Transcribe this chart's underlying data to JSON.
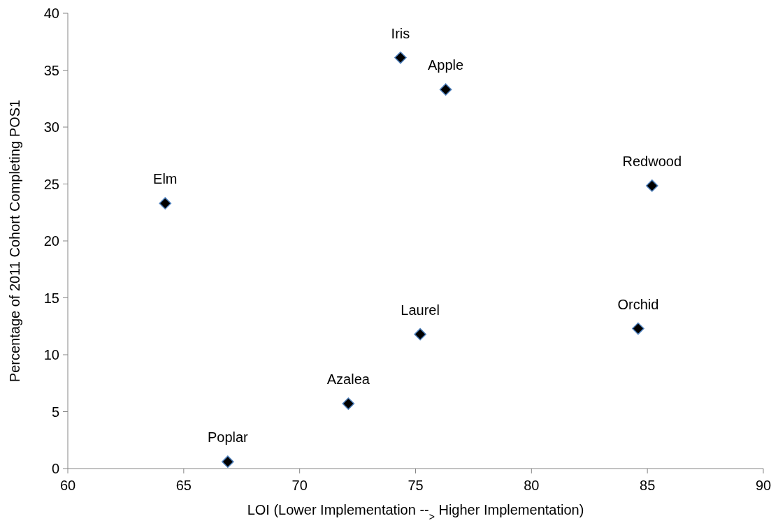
{
  "chart_data": {
    "type": "scatter",
    "xlabel": "LOI (Lower Implementation --$_{>}$ Higher Implementation)",
    "ylabel": "Percentage of 2011 Cohort Completing POS1",
    "x": [
      64.2,
      74.35,
      76.3,
      85.2,
      66.9,
      72.1,
      75.2,
      84.6
    ],
    "series": [
      {
        "color": "#000000",
        "values": [
          23.3,
          36.1,
          33.3,
          24.85,
          0.6,
          5.7,
          11.8,
          12.3
        ]
      }
    ],
    "annotations": [
      {
        "text": "Elm",
        "x": 64.2,
        "y": 23.3
      },
      {
        "text": "Iris",
        "x": 74.35,
        "y": 36.1
      },
      {
        "text": "Apple",
        "x": 76.3,
        "y": 33.3
      },
      {
        "text": "Redwood",
        "x": 85.2,
        "y": 24.85
      },
      {
        "text": "Poplar",
        "x": 66.9,
        "y": 0.6
      },
      {
        "text": "Azalea",
        "x": 72.1,
        "y": 5.7
      },
      {
        "text": "Laurel",
        "x": 75.2,
        "y": 11.8
      },
      {
        "text": "Orchid",
        "x": 84.6,
        "y": 12.3
      }
    ],
    "xlim": [
      60,
      90
    ],
    "xticks": [
      60,
      65,
      70,
      75,
      80,
      85,
      90
    ],
    "ylim": [
      0,
      40
    ],
    "yticks": [
      0,
      5,
      10,
      15,
      20,
      25,
      30,
      35,
      40
    ],
    "marker": "diamond",
    "grid": false
  }
}
